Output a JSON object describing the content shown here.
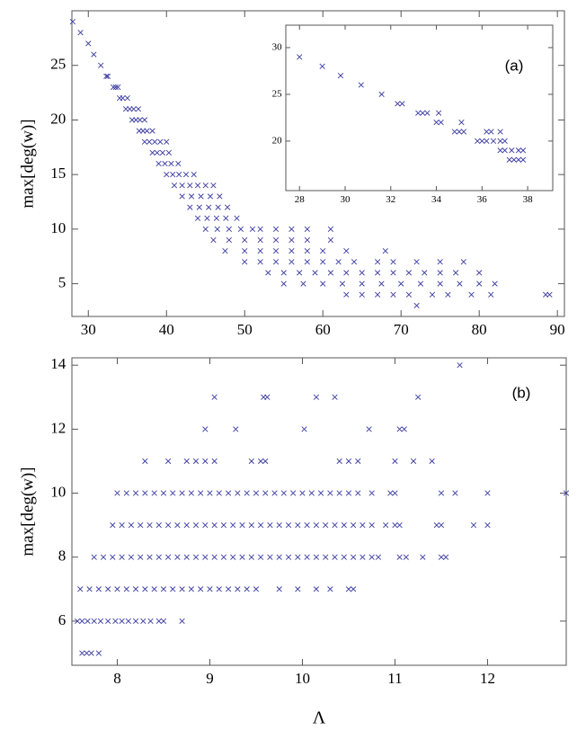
{
  "chart_data": [
    {
      "type": "scatter",
      "ylabel": "max[deg(w)]",
      "color": "#3a3aa0",
      "xlim": [
        27.9,
        90.9
      ],
      "ylim": [
        2,
        30
      ],
      "xticks": [
        30,
        40,
        50,
        60,
        70,
        80,
        90
      ],
      "yticks": [
        5,
        10,
        15,
        20,
        25
      ],
      "x": [
        28,
        29,
        30,
        30.7,
        31.6,
        32.3,
        32.5,
        33.2,
        33.5,
        33.8,
        34,
        34.4,
        35,
        34.8,
        35.3,
        35.8,
        36.4,
        35.6,
        36.1,
        36.6,
        37.2,
        36.5,
        37,
        37.5,
        38.2,
        37.2,
        37.8,
        38.5,
        39.2,
        40,
        38.2,
        38.8,
        39.5,
        40.3,
        39,
        39.8,
        40.6,
        41.5,
        40,
        40.8,
        41.6,
        42.5,
        43.5,
        41,
        42,
        43,
        44,
        45,
        46,
        42,
        43.2,
        44.4,
        45.6,
        46.8,
        43,
        44.2,
        45.4,
        46.6,
        47.8,
        44,
        45.2,
        46.4,
        47.6,
        49,
        45,
        46.5,
        48,
        49.5,
        51,
        52,
        54,
        56,
        58,
        61,
        46,
        48,
        50,
        52,
        54,
        56,
        58,
        61,
        47.5,
        50,
        52,
        54,
        56,
        58,
        60,
        63,
        68,
        50,
        52,
        54,
        56,
        58,
        60,
        62,
        64,
        67,
        69,
        72,
        75,
        78,
        53,
        55,
        57,
        59,
        61,
        63,
        65,
        67,
        69,
        71,
        73,
        75,
        77,
        80,
        55,
        57.5,
        60,
        62.5,
        65,
        67.5,
        70,
        72.5,
        75,
        77.5,
        80,
        82,
        63,
        65,
        67,
        69,
        71,
        74,
        76,
        79,
        81.5,
        88.5,
        89,
        72
      ],
      "y": [
        29,
        28,
        27,
        26,
        25,
        24,
        24,
        23,
        23,
        23,
        22,
        22,
        22,
        21,
        21,
        21,
        21,
        20,
        20,
        20,
        20,
        19,
        19,
        19,
        19,
        18,
        18,
        18,
        18,
        18,
        17,
        17,
        17,
        17,
        16,
        16,
        16,
        16,
        15,
        15,
        15,
        15,
        15,
        14,
        14,
        14,
        14,
        14,
        14,
        13,
        13,
        13,
        13,
        13,
        12,
        12,
        12,
        12,
        12,
        11,
        11,
        11,
        11,
        11,
        10,
        10,
        10,
        10,
        10,
        10,
        10,
        10,
        10,
        10,
        9,
        9,
        9,
        9,
        9,
        9,
        9,
        9,
        8,
        8,
        8,
        8,
        8,
        8,
        8,
        8,
        8,
        7,
        7,
        7,
        7,
        7,
        7,
        7,
        7,
        7,
        7,
        7,
        7,
        7,
        6,
        6,
        6,
        6,
        6,
        6,
        6,
        6,
        6,
        6,
        6,
        6,
        6,
        6,
        5,
        5,
        5,
        5,
        5,
        5,
        5,
        5,
        5,
        5,
        5,
        5,
        4,
        4,
        4,
        4,
        4,
        4,
        4,
        4,
        4,
        4,
        4,
        3
      ]
    },
    {
      "type": "scatter",
      "annotation": "(a)",
      "color": "#3a3aa0",
      "xlim": [
        27.4,
        39.1
      ],
      "ylim": [
        14.7,
        32.4
      ],
      "xticks": [
        28,
        30,
        32,
        34,
        36,
        38
      ],
      "yticks": [
        20,
        25,
        30
      ],
      "x": [
        28,
        29,
        29.8,
        30.7,
        31.6,
        32.3,
        32.5,
        33.2,
        33.4,
        33.6,
        34.1,
        34,
        34.2,
        35.1,
        34.8,
        35,
        35.2,
        36.2,
        36.4,
        36.8,
        35.8,
        36,
        36.2,
        36.5,
        36.8,
        37,
        36.8,
        37,
        37.3,
        37.6,
        37.8,
        37.2,
        37.4,
        37.6,
        37.8
      ],
      "y": [
        29,
        28,
        27,
        26,
        25,
        24,
        24,
        23,
        23,
        23,
        23,
        22,
        22,
        22,
        21,
        21,
        21,
        21,
        21,
        21,
        20,
        20,
        20,
        20,
        20,
        20,
        19,
        19,
        19,
        19,
        19,
        18,
        18,
        18,
        18
      ]
    },
    {
      "type": "scatter",
      "annotation": "(b)",
      "xlabel": "Λ",
      "ylabel": "max[deg(w)]",
      "color": "#3a3aa0",
      "xlim": [
        7.51,
        12.85
      ],
      "ylim": [
        4.62,
        14.23
      ],
      "xticks": [
        8,
        9,
        10,
        11,
        12
      ],
      "yticks": [
        6,
        8,
        10,
        12,
        14
      ],
      "x": [
        7.62,
        7.67,
        7.72,
        7.8,
        7.57,
        7.62,
        7.68,
        7.75,
        7.82,
        7.9,
        7.98,
        8.05,
        8.12,
        8.2,
        8.28,
        8.36,
        8.45,
        8.5,
        8.7,
        7.6,
        7.7,
        7.8,
        7.9,
        8.0,
        8.1,
        8.2,
        8.3,
        8.4,
        8.5,
        8.6,
        8.7,
        8.8,
        8.9,
        9.0,
        9.1,
        9.2,
        9.3,
        9.4,
        9.5,
        9.75,
        9.95,
        10.15,
        10.3,
        10.5,
        10.55,
        7.75,
        7.85,
        7.95,
        8.05,
        8.15,
        8.25,
        8.35,
        8.45,
        8.55,
        8.65,
        8.75,
        8.85,
        8.95,
        9.05,
        9.15,
        9.25,
        9.35,
        9.45,
        9.55,
        9.65,
        9.75,
        9.85,
        9.95,
        10.05,
        10.15,
        10.25,
        10.35,
        10.45,
        10.55,
        10.65,
        10.75,
        10.82,
        11.05,
        11.12,
        11.3,
        11.5,
        11.55,
        7.95,
        8.05,
        8.15,
        8.25,
        8.35,
        8.45,
        8.55,
        8.65,
        8.75,
        8.85,
        8.95,
        9.05,
        9.15,
        9.25,
        9.35,
        9.45,
        9.55,
        9.65,
        9.75,
        9.85,
        9.95,
        10.05,
        10.15,
        10.25,
        10.35,
        10.45,
        10.55,
        10.65,
        10.75,
        10.9,
        11.0,
        11.05,
        11.45,
        11.5,
        11.85,
        12.0,
        8.0,
        8.1,
        8.2,
        8.3,
        8.4,
        8.5,
        8.6,
        8.7,
        8.8,
        8.9,
        9.0,
        9.1,
        9.2,
        9.3,
        9.4,
        9.5,
        9.6,
        9.7,
        9.8,
        9.9,
        10.0,
        10.1,
        10.2,
        10.3,
        10.4,
        10.5,
        10.6,
        10.75,
        10.95,
        11.0,
        11.5,
        11.65,
        12.0,
        12.85,
        8.3,
        8.55,
        8.75,
        8.85,
        8.95,
        9.05,
        9.45,
        9.55,
        9.6,
        10.4,
        10.5,
        10.6,
        11.0,
        11.2,
        11.4,
        8.95,
        9.28,
        10.02,
        10.72,
        11.05,
        11.1,
        9.05,
        9.58,
        9.62,
        10.15,
        10.35,
        11.25,
        11.7
      ],
      "y": [
        5,
        5,
        5,
        5,
        6,
        6,
        6,
        6,
        6,
        6,
        6,
        6,
        6,
        6,
        6,
        6,
        6,
        6,
        6,
        7,
        7,
        7,
        7,
        7,
        7,
        7,
        7,
        7,
        7,
        7,
        7,
        7,
        7,
        7,
        7,
        7,
        7,
        7,
        7,
        7,
        7,
        7,
        7,
        7,
        7,
        8,
        8,
        8,
        8,
        8,
        8,
        8,
        8,
        8,
        8,
        8,
        8,
        8,
        8,
        8,
        8,
        8,
        8,
        8,
        8,
        8,
        8,
        8,
        8,
        8,
        8,
        8,
        8,
        8,
        8,
        8,
        8,
        8,
        8,
        8,
        8,
        8,
        9,
        9,
        9,
        9,
        9,
        9,
        9,
        9,
        9,
        9,
        9,
        9,
        9,
        9,
        9,
        9,
        9,
        9,
        9,
        9,
        9,
        9,
        9,
        9,
        9,
        9,
        9,
        9,
        9,
        9,
        9,
        9,
        9,
        9,
        9,
        9,
        10,
        10,
        10,
        10,
        10,
        10,
        10,
        10,
        10,
        10,
        10,
        10,
        10,
        10,
        10,
        10,
        10,
        10,
        10,
        10,
        10,
        10,
        10,
        10,
        10,
        10,
        10,
        10,
        10,
        10,
        10,
        10,
        10,
        10,
        11,
        11,
        11,
        11,
        11,
        11,
        11,
        11,
        11,
        11,
        11,
        11,
        11,
        11,
        11,
        12,
        12,
        12,
        12,
        12,
        12,
        13,
        13,
        13,
        13,
        13,
        13,
        14
      ]
    }
  ]
}
